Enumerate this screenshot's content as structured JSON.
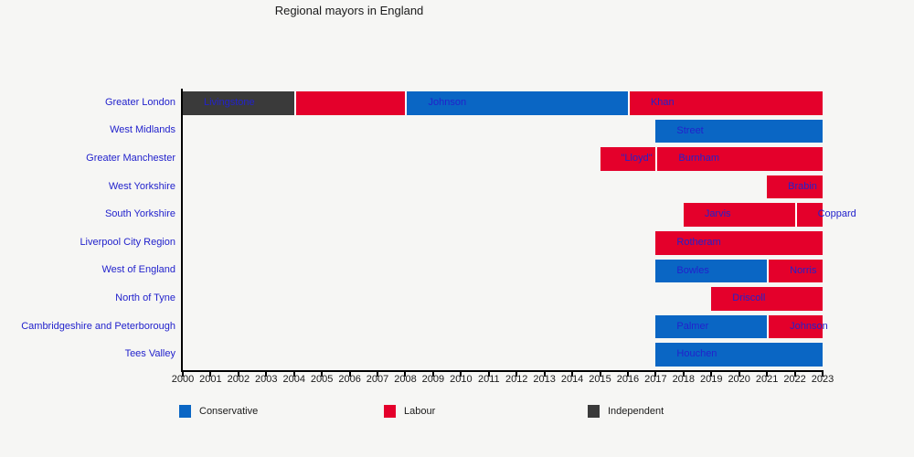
{
  "title": "Regional mayors in England",
  "colors": {
    "background": "#f6f6f4",
    "separator": "#ffffff",
    "conservative": "#0a66c4",
    "labour": "#e4002b",
    "independent": "#3a3a3a",
    "bar_label": "#2222cc",
    "region_label": "#2222cc",
    "tick_label": "#1a1a1a",
    "axis": "#000000"
  },
  "legend": {
    "items": [
      {
        "label": "Conservative",
        "party": "conservative"
      },
      {
        "label": "Labour",
        "party": "labour"
      },
      {
        "label": "Independent",
        "party": "independent"
      }
    ]
  },
  "chart_data": {
    "type": "bar",
    "subtype": "horizontal-timeline-gantt",
    "title": "Regional mayors in England",
    "x_axis": {
      "min": 2000,
      "max": 2023,
      "ticks": [
        2000,
        2001,
        2002,
        2003,
        2004,
        2005,
        2006,
        2007,
        2008,
        2009,
        2010,
        2011,
        2012,
        2013,
        2014,
        2015,
        2016,
        2017,
        2018,
        2019,
        2020,
        2021,
        2022,
        2023
      ]
    },
    "rows": [
      {
        "region": "Greater London",
        "segments": [
          {
            "label": "Livingstone",
            "party": "independent",
            "start": 2000,
            "end": 2004
          },
          {
            "label": "",
            "party": "labour",
            "start": 2004,
            "end": 2008
          },
          {
            "label": "Johnson",
            "party": "conservative",
            "start": 2008,
            "end": 2016
          },
          {
            "label": "Khan",
            "party": "labour",
            "start": 2016,
            "end": 2023
          }
        ]
      },
      {
        "region": "West Midlands",
        "segments": [
          {
            "label": "Street",
            "party": "conservative",
            "start": 2017,
            "end": 2023
          }
        ]
      },
      {
        "region": "Greater Manchester",
        "segments": [
          {
            "label": "\"Lloyd\"",
            "party": "labour",
            "start": 2015,
            "end": 2017
          },
          {
            "label": "Burnham",
            "party": "labour",
            "start": 2017,
            "end": 2023
          }
        ]
      },
      {
        "region": "West Yorkshire",
        "segments": [
          {
            "label": "Brabin",
            "party": "labour",
            "start": 2021,
            "end": 2023
          }
        ]
      },
      {
        "region": "South Yorkshire",
        "segments": [
          {
            "label": "Jarvis",
            "party": "labour",
            "start": 2018,
            "end": 2022
          },
          {
            "label": "Coppard",
            "party": "labour",
            "start": 2022,
            "end": 2023
          }
        ]
      },
      {
        "region": "Liverpool City Region",
        "segments": [
          {
            "label": "Rotheram",
            "party": "labour",
            "start": 2017,
            "end": 2023
          }
        ]
      },
      {
        "region": "West of England",
        "segments": [
          {
            "label": "Bowles",
            "party": "conservative",
            "start": 2017,
            "end": 2021
          },
          {
            "label": "Norris",
            "party": "labour",
            "start": 2021,
            "end": 2023
          }
        ]
      },
      {
        "region": "North of Tyne",
        "segments": [
          {
            "label": "Driscoll",
            "party": "labour",
            "start": 2019,
            "end": 2023
          }
        ]
      },
      {
        "region": "Cambridgeshire and Peterborough",
        "segments": [
          {
            "label": "Palmer",
            "party": "conservative",
            "start": 2017,
            "end": 2021
          },
          {
            "label": "Johnson",
            "party": "labour",
            "start": 2021,
            "end": 2023
          }
        ]
      },
      {
        "region": "Tees Valley",
        "segments": [
          {
            "label": "Houchen",
            "party": "conservative",
            "start": 2017,
            "end": 2023
          }
        ]
      }
    ]
  }
}
